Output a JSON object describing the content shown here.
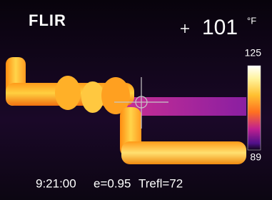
{
  "header": {
    "brand": "FLIR",
    "reading": "101",
    "unit": "°F"
  },
  "scale": {
    "max": "125",
    "min": "89"
  },
  "footer": {
    "time": "9:21:00",
    "emissivity": "e=0.95",
    "reflected": "Trefl=72"
  }
}
